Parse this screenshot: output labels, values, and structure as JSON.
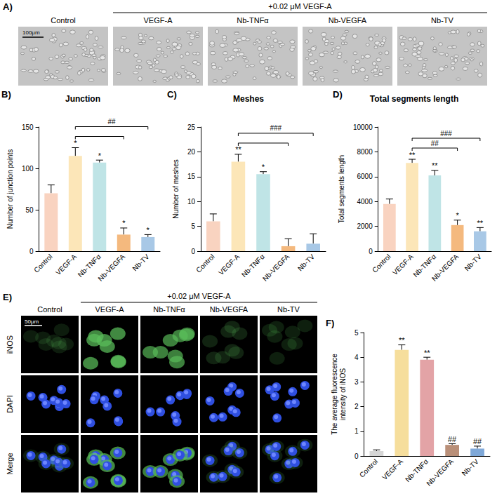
{
  "figure": {
    "panels": {
      "A": {
        "letter": "A)",
        "header": "+0.02 μM VEGF-A",
        "columns": [
          "Control",
          "VEGF-A",
          "Nb-TNFα",
          "Nb-VEGFA",
          "Nb-TV"
        ],
        "scale_bar": "100μm"
      },
      "E": {
        "letter": "E)",
        "header": "+0.02 μM VEGF-A",
        "columns": [
          "Control",
          "VEGF-A",
          "Nb-TNFα",
          "Nb-VEGFA",
          "Nb-TV"
        ],
        "rows": [
          "iNOS",
          "DAPI",
          "Merge"
        ],
        "scale_bar": "50μm"
      }
    }
  },
  "chart_data": [
    {
      "letter": "B)",
      "type": "bar",
      "title": "Junction",
      "ylabel": "Number of junction points",
      "categories": [
        "Control",
        "VEGF-A",
        "Nb-TNFα",
        "Nb-VEGFA",
        "Nb-TV"
      ],
      "values": [
        70,
        115,
        107,
        20,
        17
      ],
      "errors": [
        10,
        10,
        3,
        8,
        3
      ],
      "colors": [
        "#F9D3C0",
        "#FCE6B8",
        "#BFE4E6",
        "#F4B97E",
        "#A8C8E6"
      ],
      "marks": [
        null,
        "*",
        "*",
        "*",
        "*"
      ],
      "brackets": [
        {
          "from": "VEGF-A",
          "to": "Nb-VEGFA"
        },
        {
          "from": "VEGF-A",
          "to": "Nb-TV",
          "label": "##"
        }
      ],
      "ylim": [
        0,
        150
      ],
      "yticks": [
        0,
        50,
        100,
        150
      ],
      "grid": false
    },
    {
      "letter": "C)",
      "type": "bar",
      "title": "Meshes",
      "ylabel": "Number of meshes",
      "categories": [
        "Control",
        "VEGF-A",
        "Nb-TNFα",
        "Nb-VEGFA",
        "Nb-TV"
      ],
      "values": [
        6,
        18,
        15.5,
        1,
        1.5
      ],
      "errors": [
        1.5,
        1.5,
        0.5,
        1.5,
        2
      ],
      "colors": [
        "#F9D3C0",
        "#FCE6B8",
        "#BFE4E6",
        "#F4B97E",
        "#A8C8E6"
      ],
      "marks": [
        null,
        "**",
        "*",
        null,
        null
      ],
      "brackets": [
        {
          "from": "VEGF-A",
          "to": "Nb-VEGFA"
        },
        {
          "from": "VEGF-A",
          "to": "Nb-TV",
          "label": "###"
        }
      ],
      "ylim": [
        0,
        25
      ],
      "yticks": [
        0,
        5,
        10,
        15,
        20,
        25
      ],
      "grid": false
    },
    {
      "letter": "D)",
      "type": "bar",
      "title": "Total segments length",
      "ylabel": "Total segments length",
      "categories": [
        "Control",
        "VEGF-A",
        "Nb-TNFα",
        "Nb-VEGFA",
        "Nb-TV"
      ],
      "values": [
        3800,
        7100,
        6100,
        2100,
        1600
      ],
      "errors": [
        400,
        300,
        400,
        400,
        300
      ],
      "colors": [
        "#F9D3C0",
        "#FCE6B8",
        "#BFE4E6",
        "#F4B97E",
        "#A8C8E6"
      ],
      "marks": [
        null,
        "**",
        "**",
        "*",
        "**"
      ],
      "brackets": [
        {
          "from": "VEGF-A",
          "to": "Nb-VEGFA",
          "label": "##"
        },
        {
          "from": "VEGF-A",
          "to": "Nb-TV",
          "label": "###"
        }
      ],
      "ylim": [
        0,
        10000
      ],
      "yticks": [
        0,
        2000,
        4000,
        6000,
        8000,
        10000
      ],
      "grid": false
    },
    {
      "letter": "F)",
      "type": "bar",
      "ylabel": "The average fluorescence intensity of iNOS",
      "categories": [
        "Control",
        "VEGF-A",
        "Nb-TNFα",
        "Nb-VEGFA",
        "Nb-TV"
      ],
      "values": [
        0.2,
        4.3,
        3.9,
        0.45,
        0.3
      ],
      "errors": [
        0.05,
        0.2,
        0.1,
        0.05,
        0.1
      ],
      "colors": [
        "#D6D6D6",
        "#F6DE9C",
        "#E3A3A6",
        "#B98F78",
        "#7FA8D8"
      ],
      "marks": [
        null,
        "**",
        "**",
        "##",
        "##"
      ],
      "ylim": [
        0,
        5
      ],
      "yticks": [
        0,
        1,
        2,
        3,
        4,
        5
      ],
      "grid": false
    }
  ]
}
